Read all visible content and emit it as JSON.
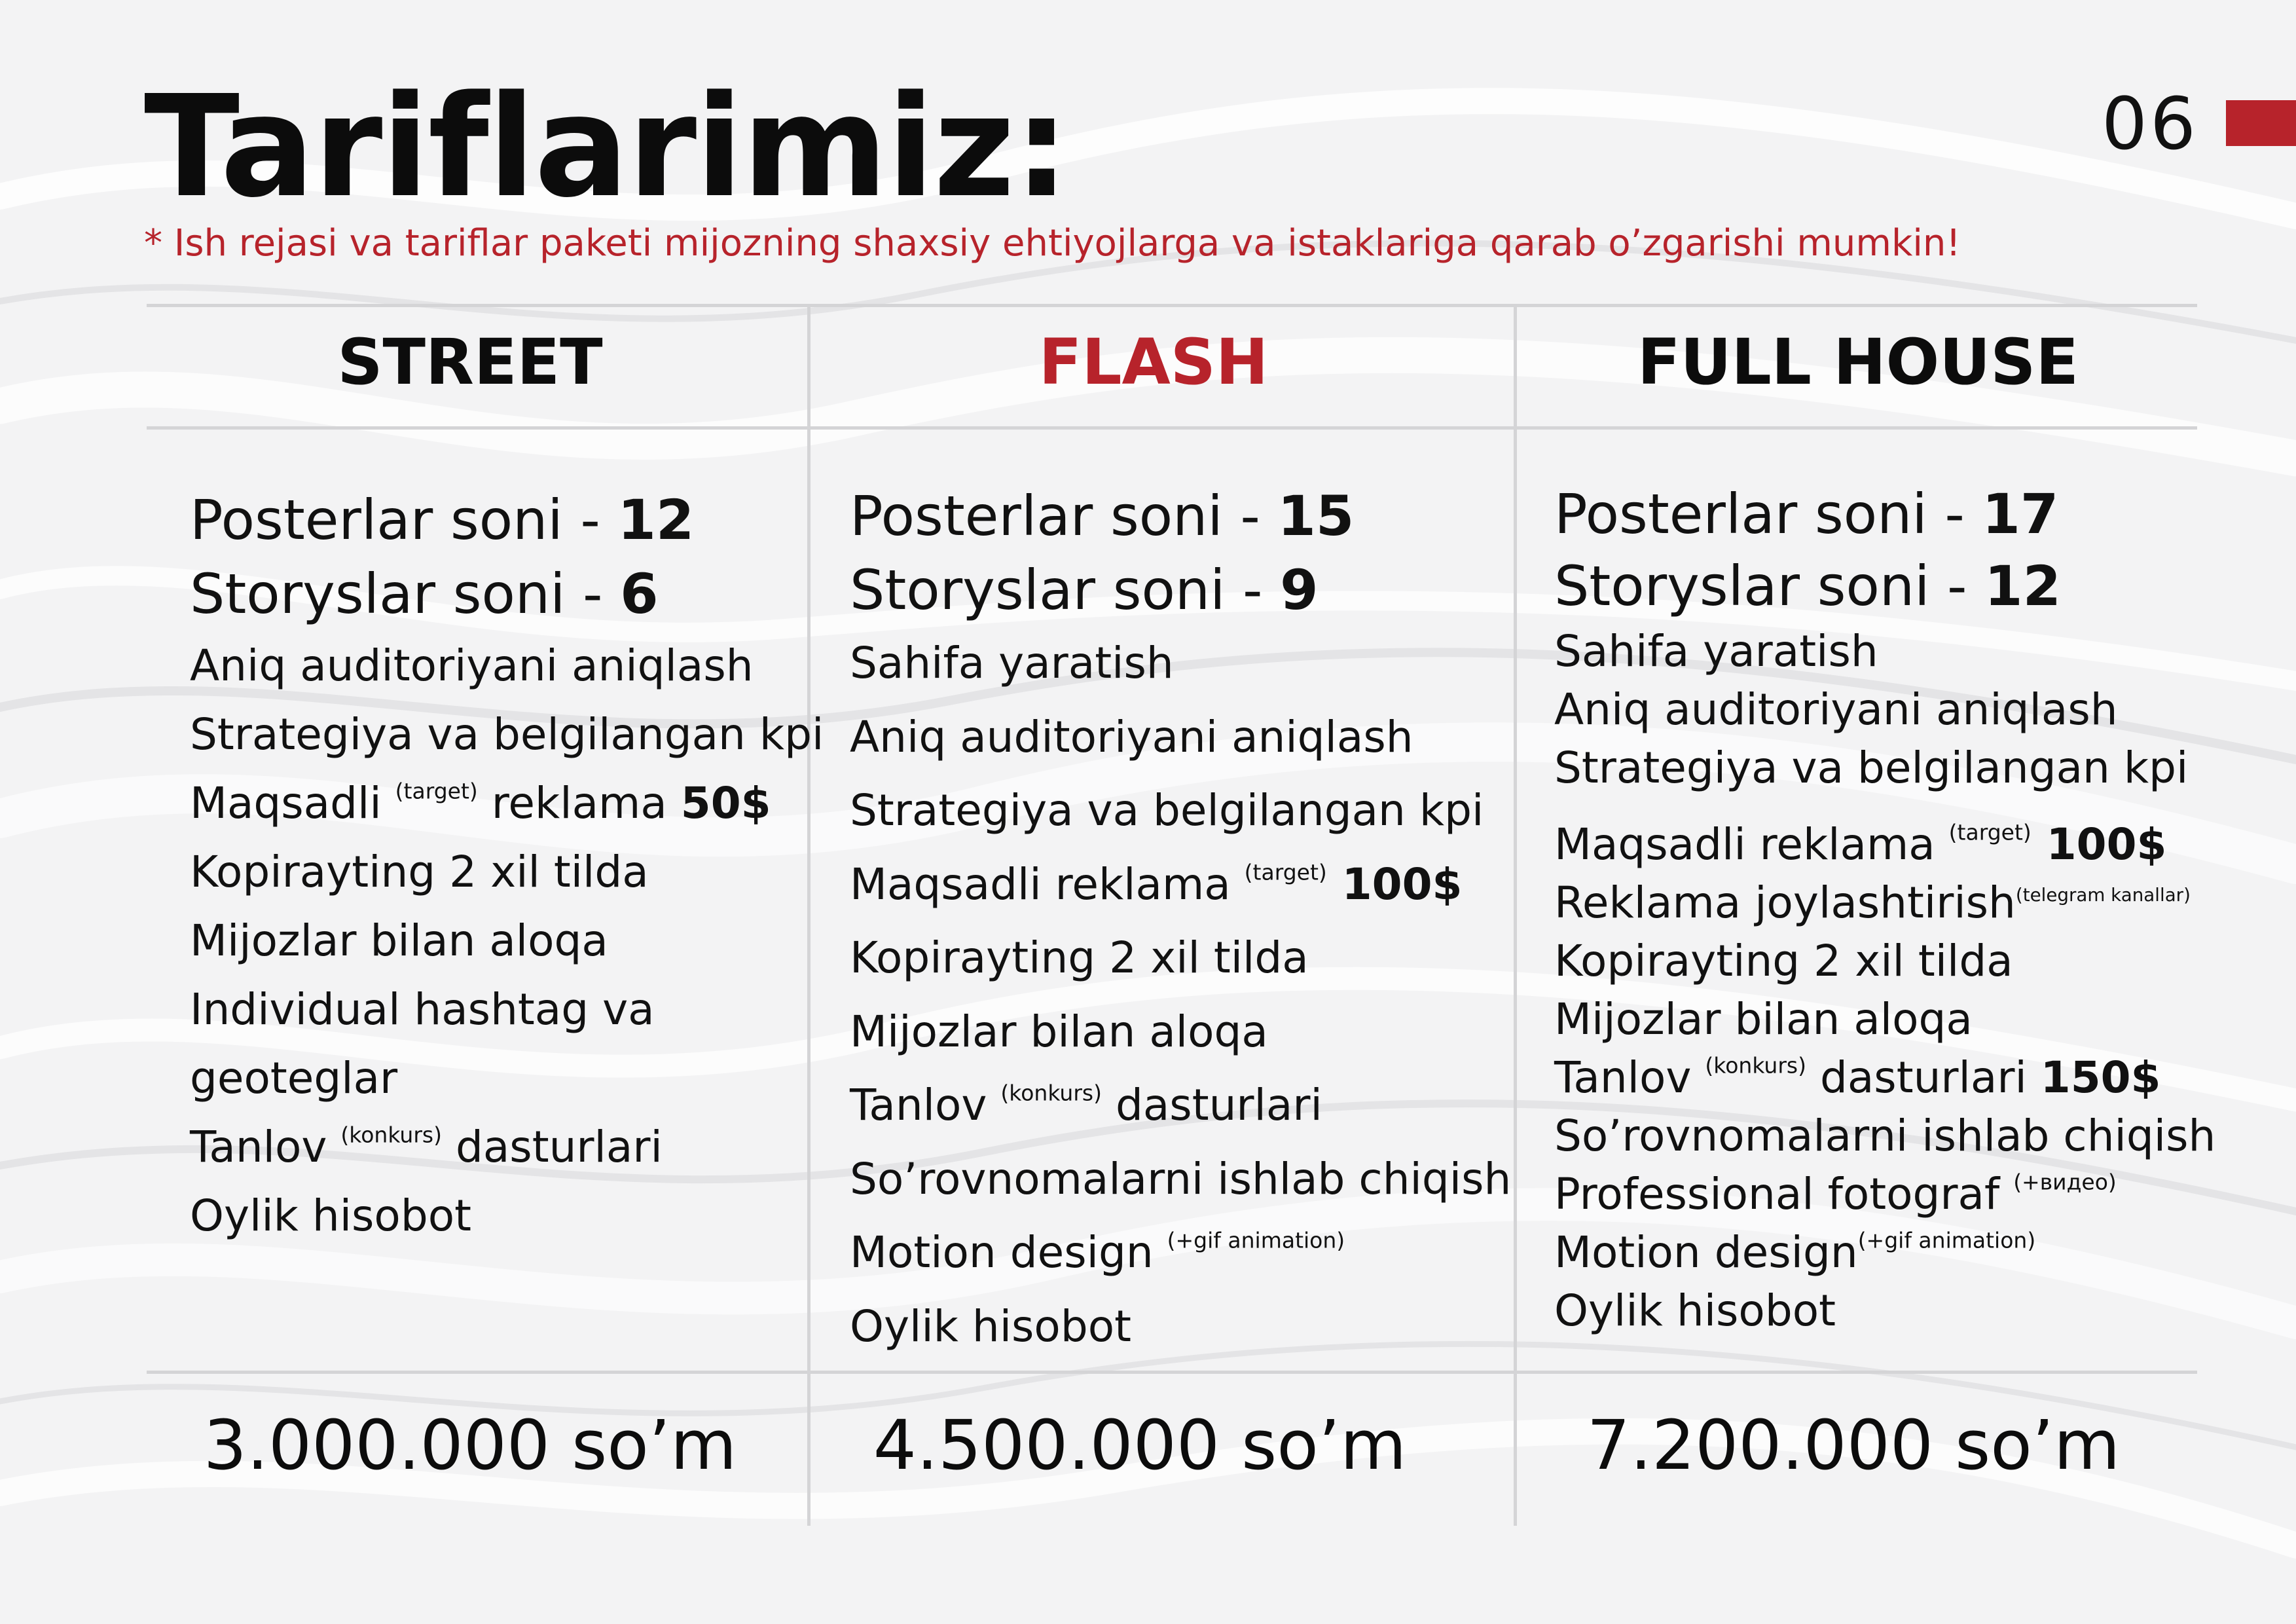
{
  "page": {
    "title": "Tariflarimiz:",
    "page_number": "06",
    "accent_color": "#b7232b"
  },
  "note": "* Ish rejasi va tariflar paketi mijozning shaxsiy ehtiyojlarga va istaklariga qarab o’zgarishi mumkin!",
  "plans": [
    {
      "name": "STREET",
      "price": "3.000.000 so’m",
      "features": {
        "posters": {
          "label": "Posterlar soni - ",
          "value": "12"
        },
        "storys": {
          "label": "Storyslar soni - ",
          "value": "6"
        },
        "audience": "Aniq auditoriyani aniqlash",
        "strategy": "Strategiya va belgilangan kpi",
        "ads": {
          "label": "Maqsadli ",
          "note": "(target)",
          "rest": " reklama ",
          "value": "50$"
        },
        "copywriting": "Kopirayting 2 xil tilda",
        "clients": "Mijozlar bilan aloqa",
        "hashtag_1": "Individual hashtag va",
        "hashtag_2": "geoteglar",
        "contest": {
          "label": "Tanlov ",
          "note": "(konkurs)",
          "rest": " dasturlari"
        },
        "report": "Oylik hisobot"
      }
    },
    {
      "name": "FLASH",
      "price": "4.500.000 so’m",
      "features": {
        "posters": {
          "label": "Posterlar soni - ",
          "value": "15"
        },
        "storys": {
          "label": "Storyslar soni - ",
          "value": "9"
        },
        "page": "Sahifa yaratish",
        "audience": "Aniq auditoriyani aniqlash",
        "strategy": "Strategiya va belgilangan kpi",
        "ads": {
          "label": "Maqsadli reklama ",
          "note": "(target)",
          "value": " 100$"
        },
        "copywriting": "Kopirayting 2 xil tilda",
        "clients": "Mijozlar bilan aloqa",
        "contest": {
          "label": "Tanlov ",
          "note": "(konkurs)",
          "rest": " dasturlari"
        },
        "surveys": "So’rovnomalarni ishlab chiqish",
        "motion": {
          "label": "Motion design ",
          "note": "(+gif animation)"
        },
        "report": "Oylik hisobot"
      }
    },
    {
      "name": "FULL HOUSE",
      "price": "7.200.000 so’m",
      "features": {
        "posters": {
          "label": "Posterlar soni - ",
          "value": "17"
        },
        "storys": {
          "label": "Storyslar soni - ",
          "value": "12"
        },
        "page": "Sahifa yaratish",
        "audience": "Aniq auditoriyani aniqlash",
        "strategy": "Strategiya va belgilangan kpi",
        "ads": {
          "label": "Maqsadli reklama ",
          "note": "(target)",
          "value": " 100$"
        },
        "placement": {
          "label": "Reklama joylashtirish",
          "note": "(telegram kanallar)"
        },
        "copywriting": "Kopirayting 2 xil tilda",
        "clients": "Mijozlar bilan aloqa",
        "contest": {
          "label": "Tanlov ",
          "note": "(konkurs)",
          "rest": " dasturlari ",
          "value": "150$"
        },
        "surveys": "So’rovnomalarni ishlab chiqish",
        "photographer": {
          "label": "Professional fotograf ",
          "note": "(+видео)"
        },
        "motion": {
          "label": "Motion design",
          "note": "(+gif animation)"
        },
        "report": "Oylik hisobot"
      }
    }
  ]
}
